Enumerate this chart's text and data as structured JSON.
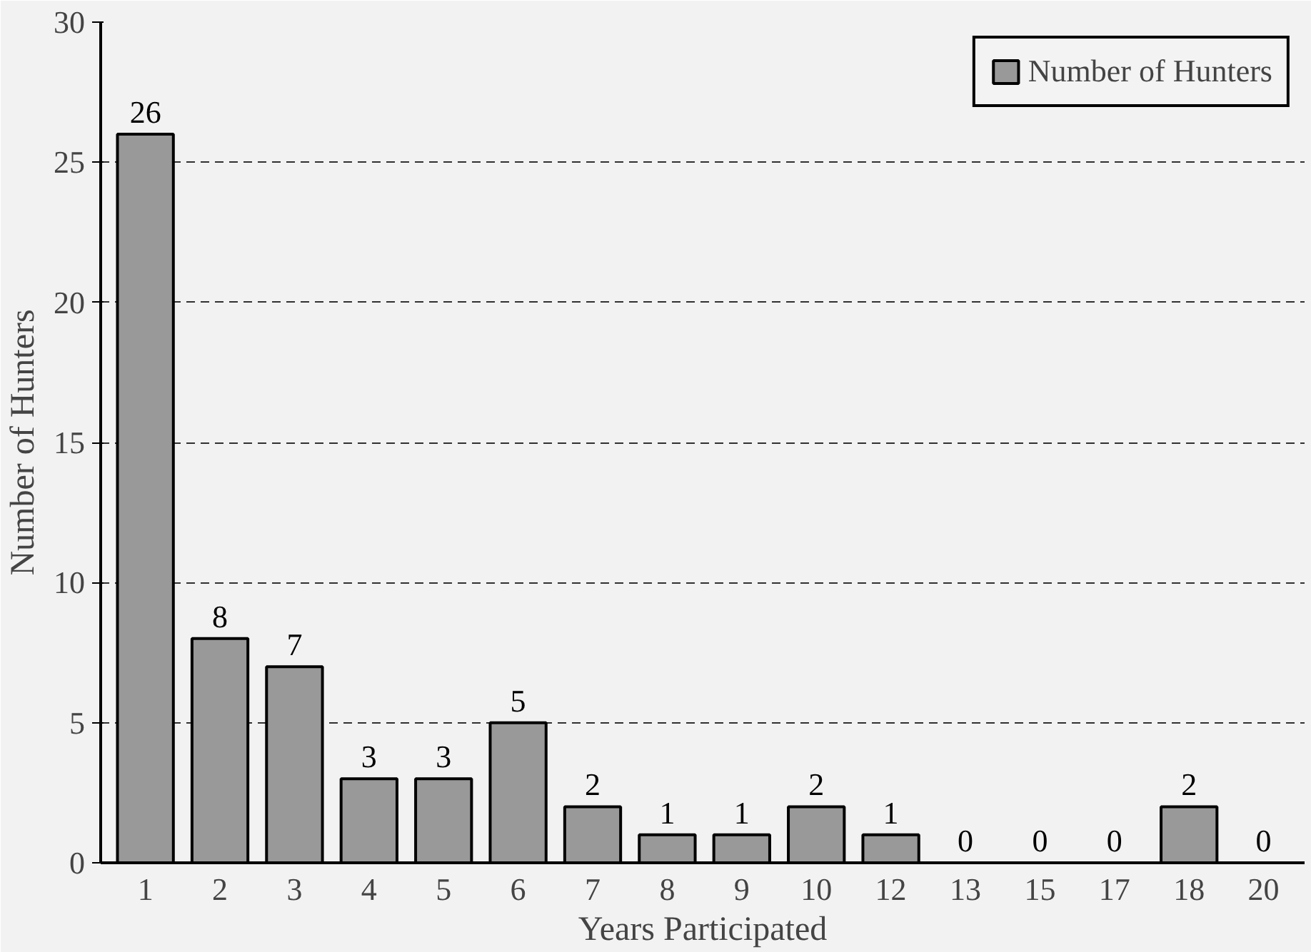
{
  "chart_data": {
    "type": "bar",
    "xlabel": "Years Participated",
    "ylabel": "Number of Hunters",
    "categories": [
      "1",
      "2",
      "3",
      "4",
      "5",
      "6",
      "7",
      "8",
      "9",
      "10",
      "12",
      "13",
      "15",
      "17",
      "18",
      "20"
    ],
    "series": [
      {
        "name": "Number of Hunters",
        "color": "#999999",
        "values": [
          26,
          8,
          7,
          3,
          3,
          5,
          2,
          1,
          1,
          2,
          1,
          0,
          0,
          0,
          2,
          0
        ]
      }
    ],
    "ylim": [
      0,
      30
    ],
    "yticks": [
      0,
      5,
      10,
      15,
      20,
      25,
      30
    ],
    "grid": "y",
    "legend": "top right",
    "data_labels": true
  }
}
